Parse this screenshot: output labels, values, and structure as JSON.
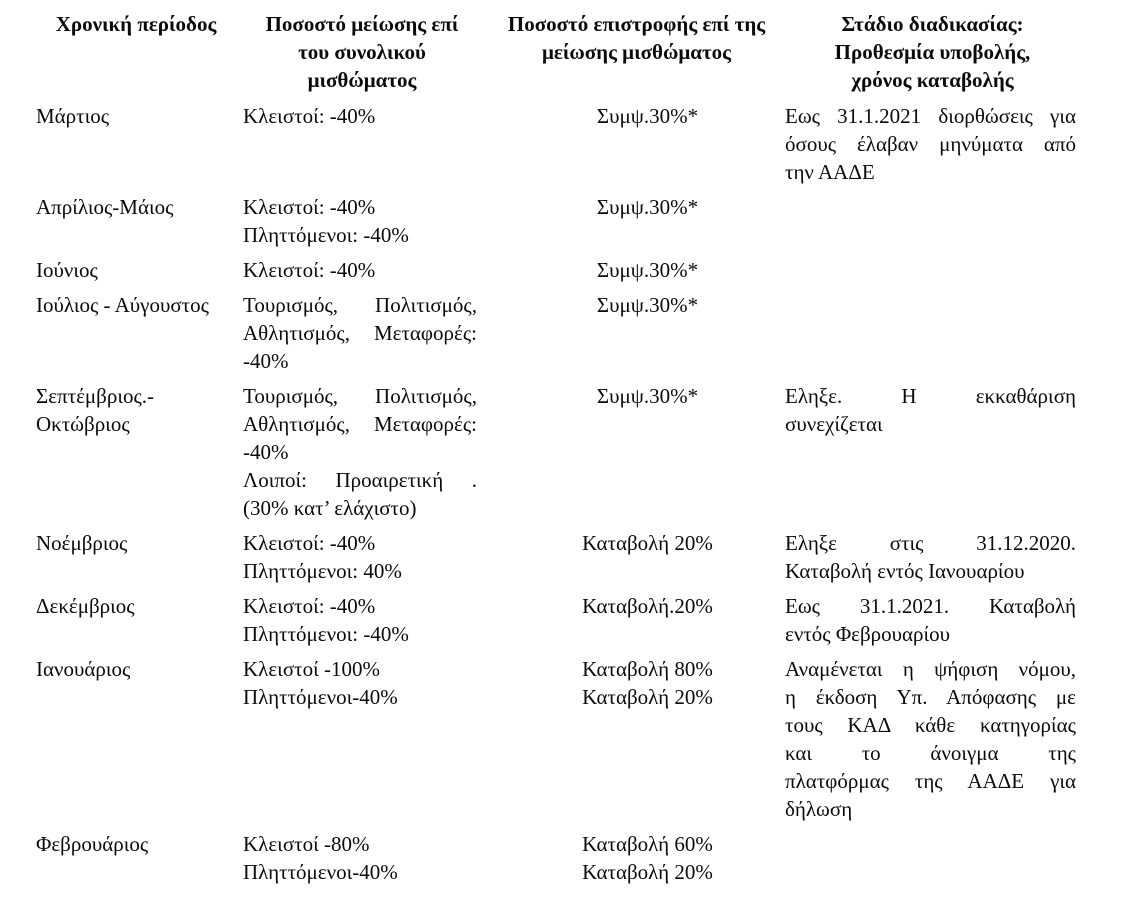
{
  "colors": {
    "text": "#000000",
    "background": "#ffffff"
  },
  "table": {
    "columns": [
      {
        "key": "period",
        "header_lines": [
          "Χρονική περίοδος"
        ]
      },
      {
        "key": "reduction",
        "header_lines": [
          "Ποσοστό μείωσης επί",
          "του συνολικού",
          "μισθώματος"
        ]
      },
      {
        "key": "refund",
        "header_lines": [
          "Ποσοστό επιστροφής επί της",
          "μείωσης μισθώματος"
        ]
      },
      {
        "key": "stage",
        "header_lines": [
          "Στάδιο διαδικασίας:",
          "Προθεσμία υποβολής,",
          "χρόνος καταβολής"
        ]
      }
    ],
    "rows": [
      {
        "period": [
          "Μάρτιος"
        ],
        "reduction": [
          [
            "Κλειστοί: -40%"
          ]
        ],
        "refund": [
          "Συμψ.30%*"
        ],
        "stage": [
          [
            "Εως 31.1.2021 διορθώσεις για",
            "όσους έλαβαν μηνύματα από",
            "την ΑΑΔΕ"
          ]
        ]
      },
      {
        "period": [
          "Απρίλιος-Μάιος"
        ],
        "reduction": [
          [
            "Κλειστοί: -40%"
          ],
          [
            "Πληττόμενοι: -40%"
          ]
        ],
        "refund": [
          "Συμψ.30%*"
        ],
        "stage": []
      },
      {
        "period": [
          "Ιούνιος"
        ],
        "reduction": [
          [
            "Κλειστοί: -40%"
          ]
        ],
        "refund": [
          "Συμψ.30%*"
        ],
        "stage": []
      },
      {
        "period": [
          "Ιούλιος - Αύγουστος"
        ],
        "reduction": [
          [
            "Τουρισμός, Πολιτισμός,",
            "Αθλητισμός, Μεταφορές:",
            "-40%"
          ]
        ],
        "refund": [
          "Συμψ.30%*"
        ],
        "stage": []
      },
      {
        "period": [
          "Σεπτέμβριος.-",
          "Οκτώβριος"
        ],
        "reduction": [
          [
            "Τουρισμός, Πολιτισμός,",
            "Αθλητισμός, Μεταφορές:",
            "-40%"
          ],
          [
            "Λοιποί: Προαιρετική .",
            "(30% κατ’ ελάχιστο)"
          ]
        ],
        "refund": [
          "Συμψ.30%*"
        ],
        "stage": [
          [
            "Εληξε. Η εκκαθάριση",
            "συνεχίζεται"
          ]
        ]
      },
      {
        "period": [
          "Νοέμβριος"
        ],
        "reduction": [
          [
            "Κλειστοί: -40%"
          ],
          [
            "Πληττόμενοι: 40%"
          ]
        ],
        "refund": [
          "Καταβολή 20%"
        ],
        "stage": [
          [
            "Εληξε στις 31.12.2020.",
            "Καταβολή εντός Ιανουαρίου"
          ]
        ]
      },
      {
        "period": [
          "Δεκέμβριος"
        ],
        "reduction": [
          [
            "Κλειστοί: -40%"
          ],
          [
            "Πληττόμενοι: -40%"
          ]
        ],
        "refund": [
          "Καταβολή.20%"
        ],
        "stage": [
          [
            "Εως 31.1.2021. Καταβολή",
            "εντός Φεβρουαρίου"
          ]
        ]
      },
      {
        "period": [
          "Ιανουάριος"
        ],
        "reduction": [
          [
            "Κλειστοί -100%"
          ],
          [
            "Πληττόμενοι-40%"
          ]
        ],
        "refund": [
          "Καταβολή 80%",
          "Καταβολή 20%"
        ],
        "stage": [
          [
            "Αναμένεται η ψήφιση νόμου,",
            "η έκδοση Υπ. Απόφασης με",
            "τους ΚΑΔ κάθε κατηγορίας",
            "και το άνοιγμα της",
            "πλατφόρμας της ΑΑΔΕ για",
            "δήλωση"
          ]
        ]
      },
      {
        "period": [
          "Φεβρουάριος"
        ],
        "reduction": [
          [
            "Κλειστοί -80%"
          ],
          [
            "Πληττόμενοι-40%"
          ]
        ],
        "refund": [
          "Καταβολή 60%",
          "Καταβολή 20%"
        ],
        "stage": []
      }
    ]
  }
}
